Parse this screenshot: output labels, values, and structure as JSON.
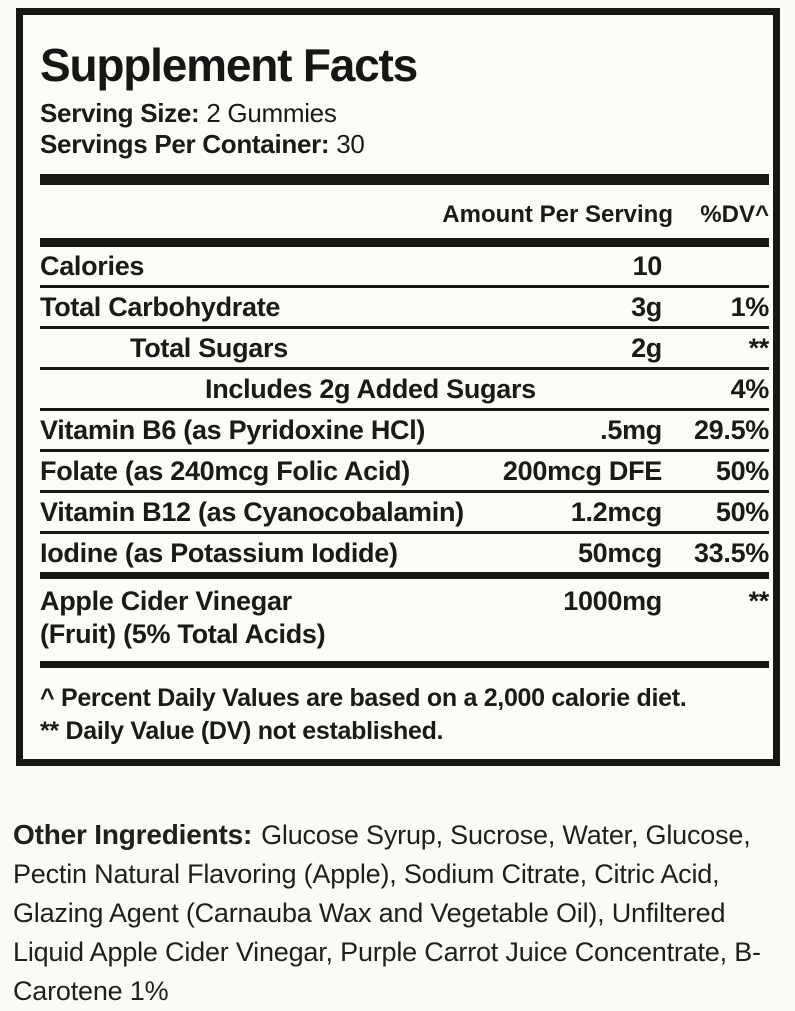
{
  "panel": {
    "title": "Supplement Facts",
    "serving_size": {
      "label": "Serving Size:",
      "value": "2 Gummies"
    },
    "servings_per_container": {
      "label": "Servings Per Container:",
      "value": "30"
    },
    "header": {
      "amount": "Amount Per Serving",
      "dv": "%DV^"
    },
    "rows": [
      {
        "name": "Calories",
        "amount": "10",
        "dv": ""
      },
      {
        "name": "Total Carbohydrate",
        "amount": "3g",
        "dv": "1%"
      },
      {
        "name": "Total Sugars",
        "amount": "2g",
        "dv": "**"
      },
      {
        "name": "Includes 2g Added Sugars",
        "amount": "",
        "dv": "4%"
      },
      {
        "name": "Vitamin B6 (as Pyridoxine HCl)",
        "amount": ".5mg",
        "dv": "29.5%"
      },
      {
        "name": "Folate (as 240mcg Folic Acid)",
        "amount": "200mcg DFE",
        "dv": "50%"
      },
      {
        "name": "Vitamin B12 (as Cyanocobalamin)",
        "amount": "1.2mcg",
        "dv": "50%"
      },
      {
        "name": "Iodine (as Potassium Iodide)",
        "amount": "50mcg",
        "dv": "33.5%"
      },
      {
        "name": "Apple Cider Vinegar",
        "name_line2": "(Fruit) (5% Total Acids)",
        "amount": "1000mg",
        "dv": "**"
      }
    ],
    "footnotes": {
      "dv_note": "^ Percent Daily Values are based on a 2,000 calorie diet.",
      "not_established_note": "** Daily Value (DV) not established."
    }
  },
  "other_ingredients": {
    "label": "Other Ingredients:",
    "text": "Glucose Syrup, Sucrose, Water, Glucose, Pectin Natural Flavoring (Apple), Sodium Citrate, Citric Acid, Glazing Agent (Carnauba Wax and Vegetable Oil), Unfiltered Liquid Apple Cider Vinegar, Purple Carrot Juice Concentrate, B-Carotene 1%"
  },
  "colors": {
    "ink": "#1b1a17",
    "background": "#fbfaf6"
  }
}
